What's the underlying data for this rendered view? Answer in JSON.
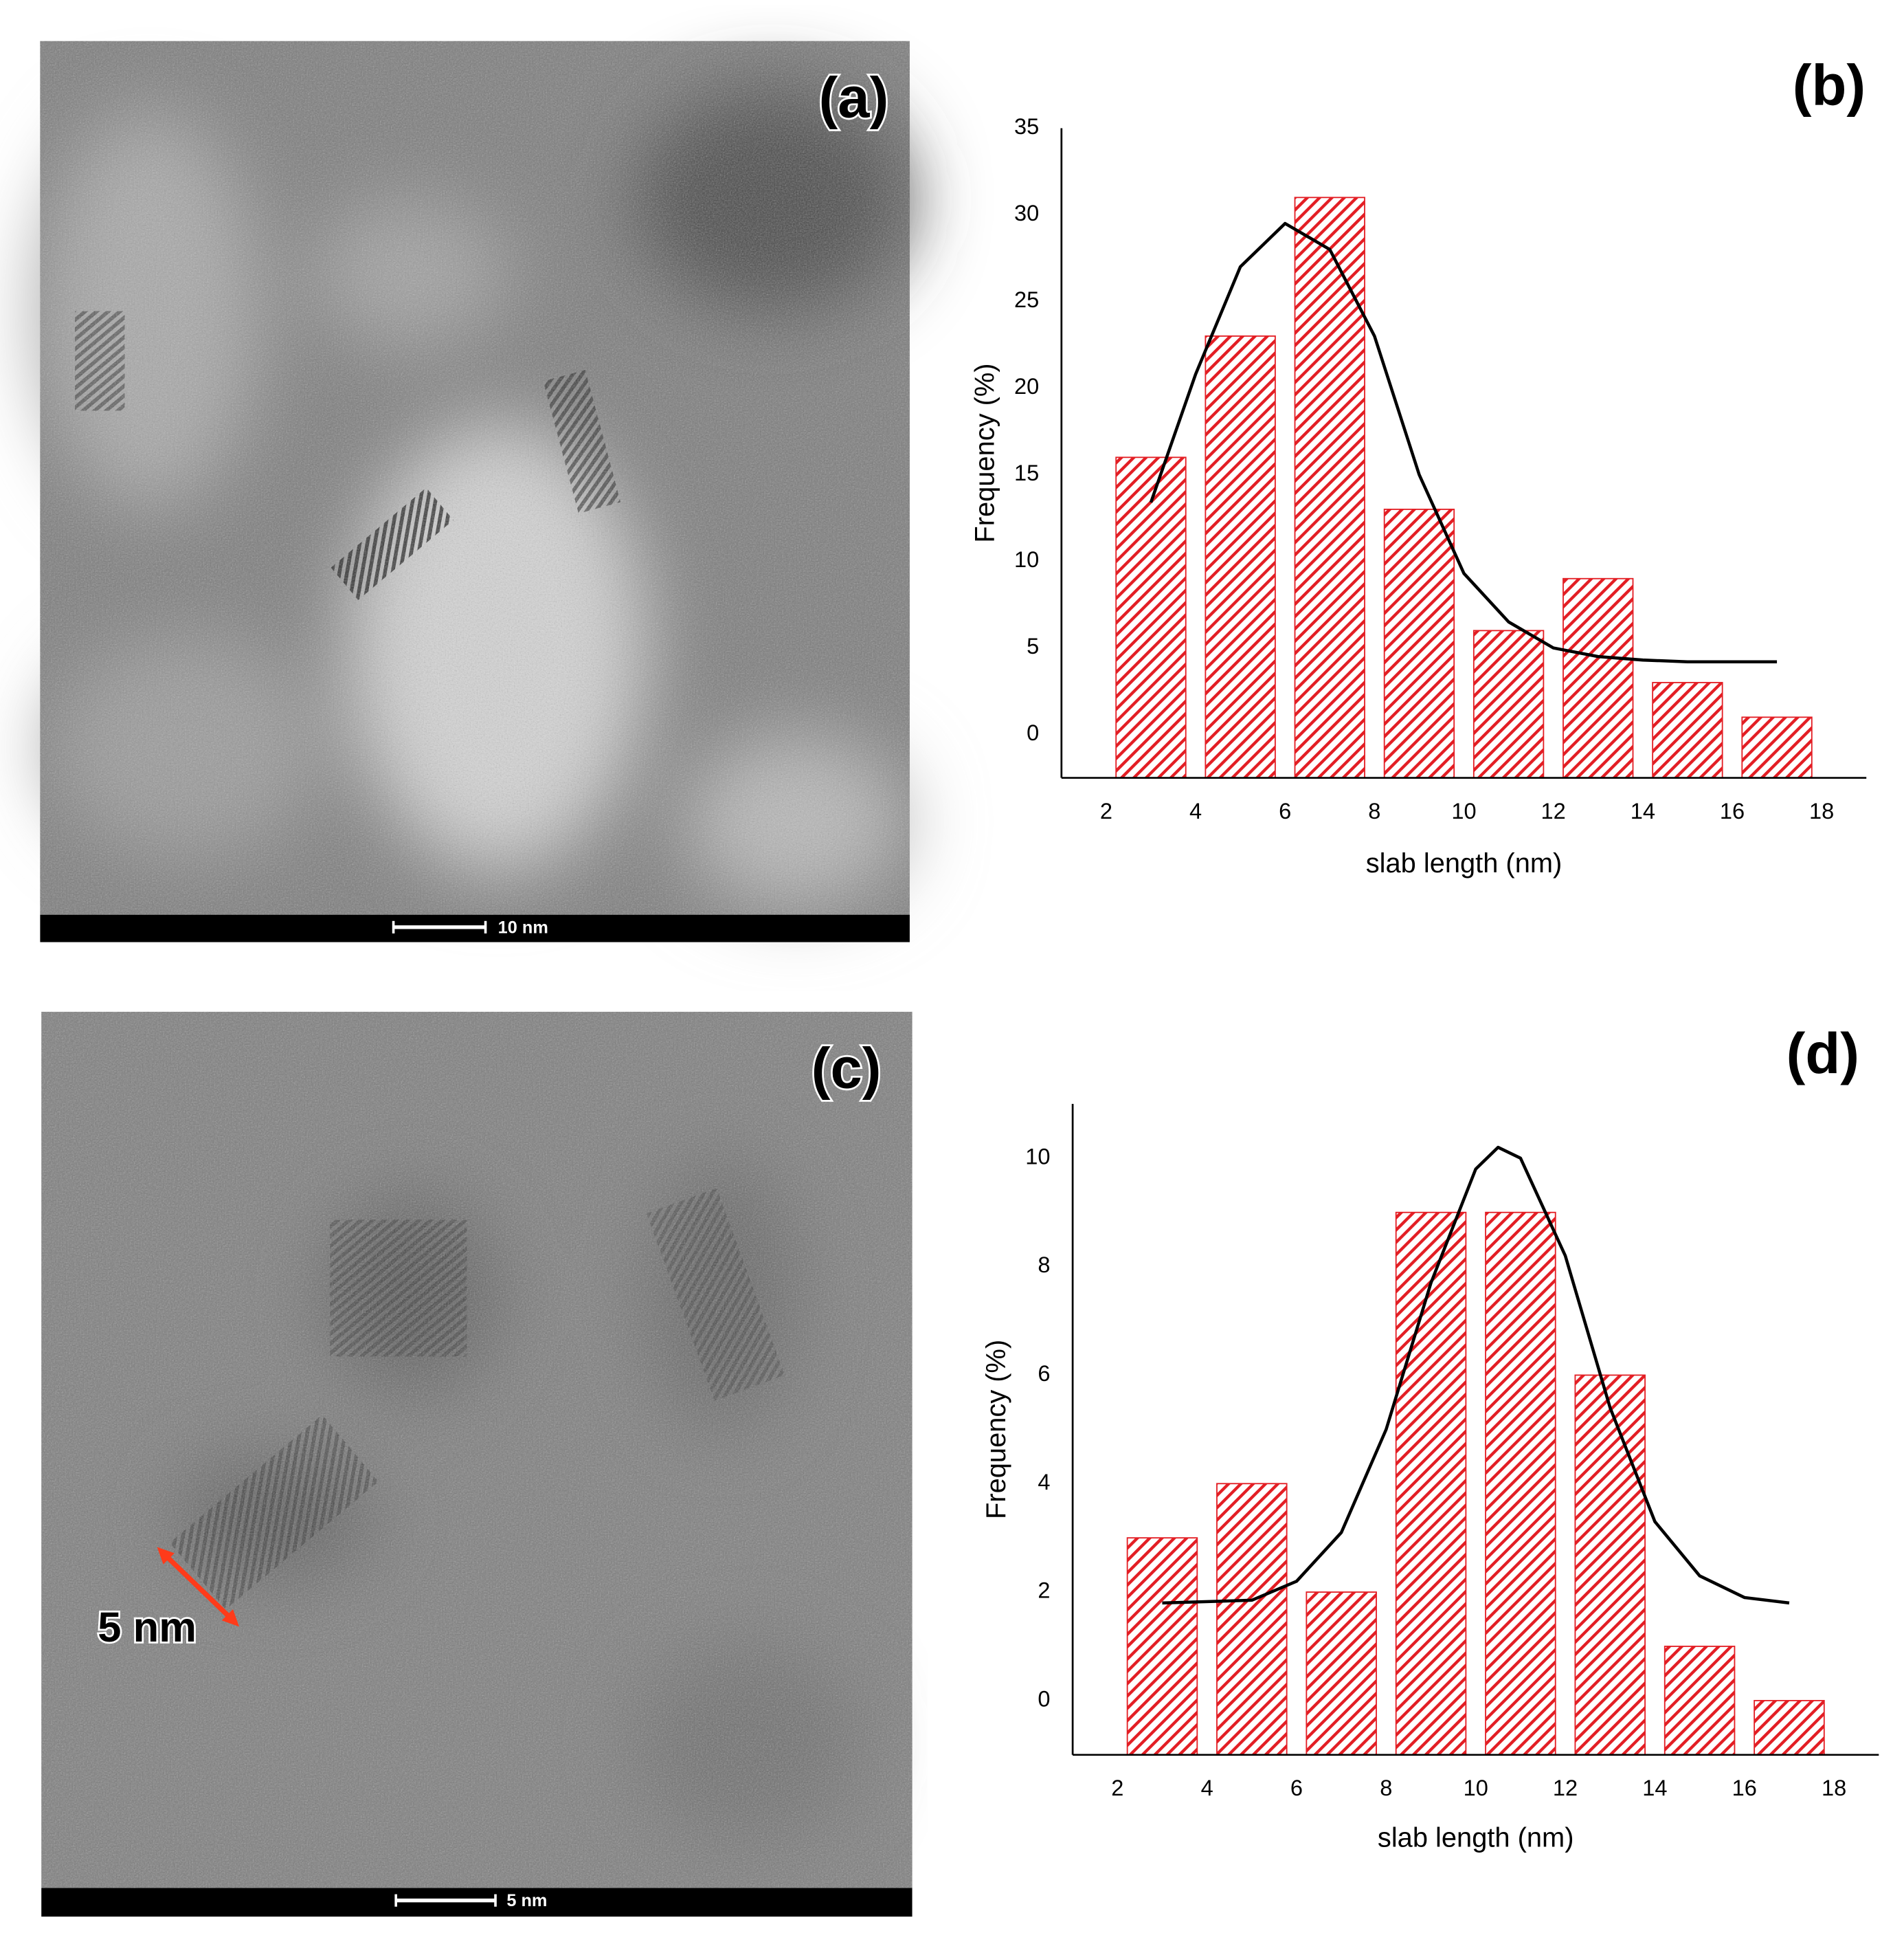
{
  "images": [
    {
      "label": "(a)",
      "scale_bar": "10 nm"
    },
    {
      "label": "(c)",
      "scale_bar": "5 nm",
      "annotation": "5 nm"
    }
  ],
  "chart_data": [
    {
      "type": "bar",
      "panel_label": "(b)",
      "xlabel": "slab length (nm)",
      "ylabel": "Frequency (%)",
      "x": [
        3,
        5,
        7,
        9,
        11,
        13,
        15,
        17
      ],
      "values": [
        16,
        23,
        31,
        13,
        6,
        9,
        3,
        1
      ],
      "color": "#e31e24",
      "hatch": true,
      "fit": {
        "x": [
          3,
          4,
          5,
          6,
          7,
          8,
          9,
          10,
          11,
          12,
          13,
          14,
          15,
          16,
          17
        ],
        "values": [
          13.4,
          20.8,
          27,
          29.5,
          28,
          23,
          15,
          9.3,
          6.5,
          5,
          4.5,
          4.3,
          4.2,
          4.2,
          4.2
        ],
        "color": "#000000"
      },
      "xlim": [
        1,
        19
      ],
      "ylim": [
        -2.5,
        35
      ],
      "xticks": [
        2,
        4,
        6,
        8,
        10,
        12,
        14,
        16,
        18
      ],
      "yticks": [
        0,
        5,
        10,
        15,
        20,
        25,
        30,
        35
      ],
      "grid": false
    },
    {
      "type": "bar",
      "panel_label": "(d)",
      "xlabel": "slab length (nm)",
      "ylabel": "Frequency (%)",
      "x": [
        3,
        5,
        7,
        9,
        11,
        13,
        15,
        17
      ],
      "values": [
        3,
        4,
        2,
        9,
        9,
        6,
        1,
        0
      ],
      "color": "#e31e24",
      "hatch": true,
      "fit": {
        "x": [
          3,
          5,
          6,
          7,
          8,
          9,
          10,
          10.5,
          11,
          12,
          13,
          14,
          15,
          16,
          17
        ],
        "values": [
          1.8,
          1.85,
          2.2,
          3.1,
          5,
          7.7,
          9.8,
          10.2,
          10,
          8.2,
          5.4,
          3.3,
          2.3,
          1.9,
          1.8
        ],
        "color": "#000000"
      },
      "xlim": [
        1,
        19
      ],
      "ylim": [
        -1,
        11
      ],
      "xticks": [
        2,
        4,
        6,
        8,
        10,
        12,
        14,
        16,
        18
      ],
      "yticks": [
        0,
        2,
        4,
        6,
        8,
        10
      ],
      "grid": false
    }
  ]
}
